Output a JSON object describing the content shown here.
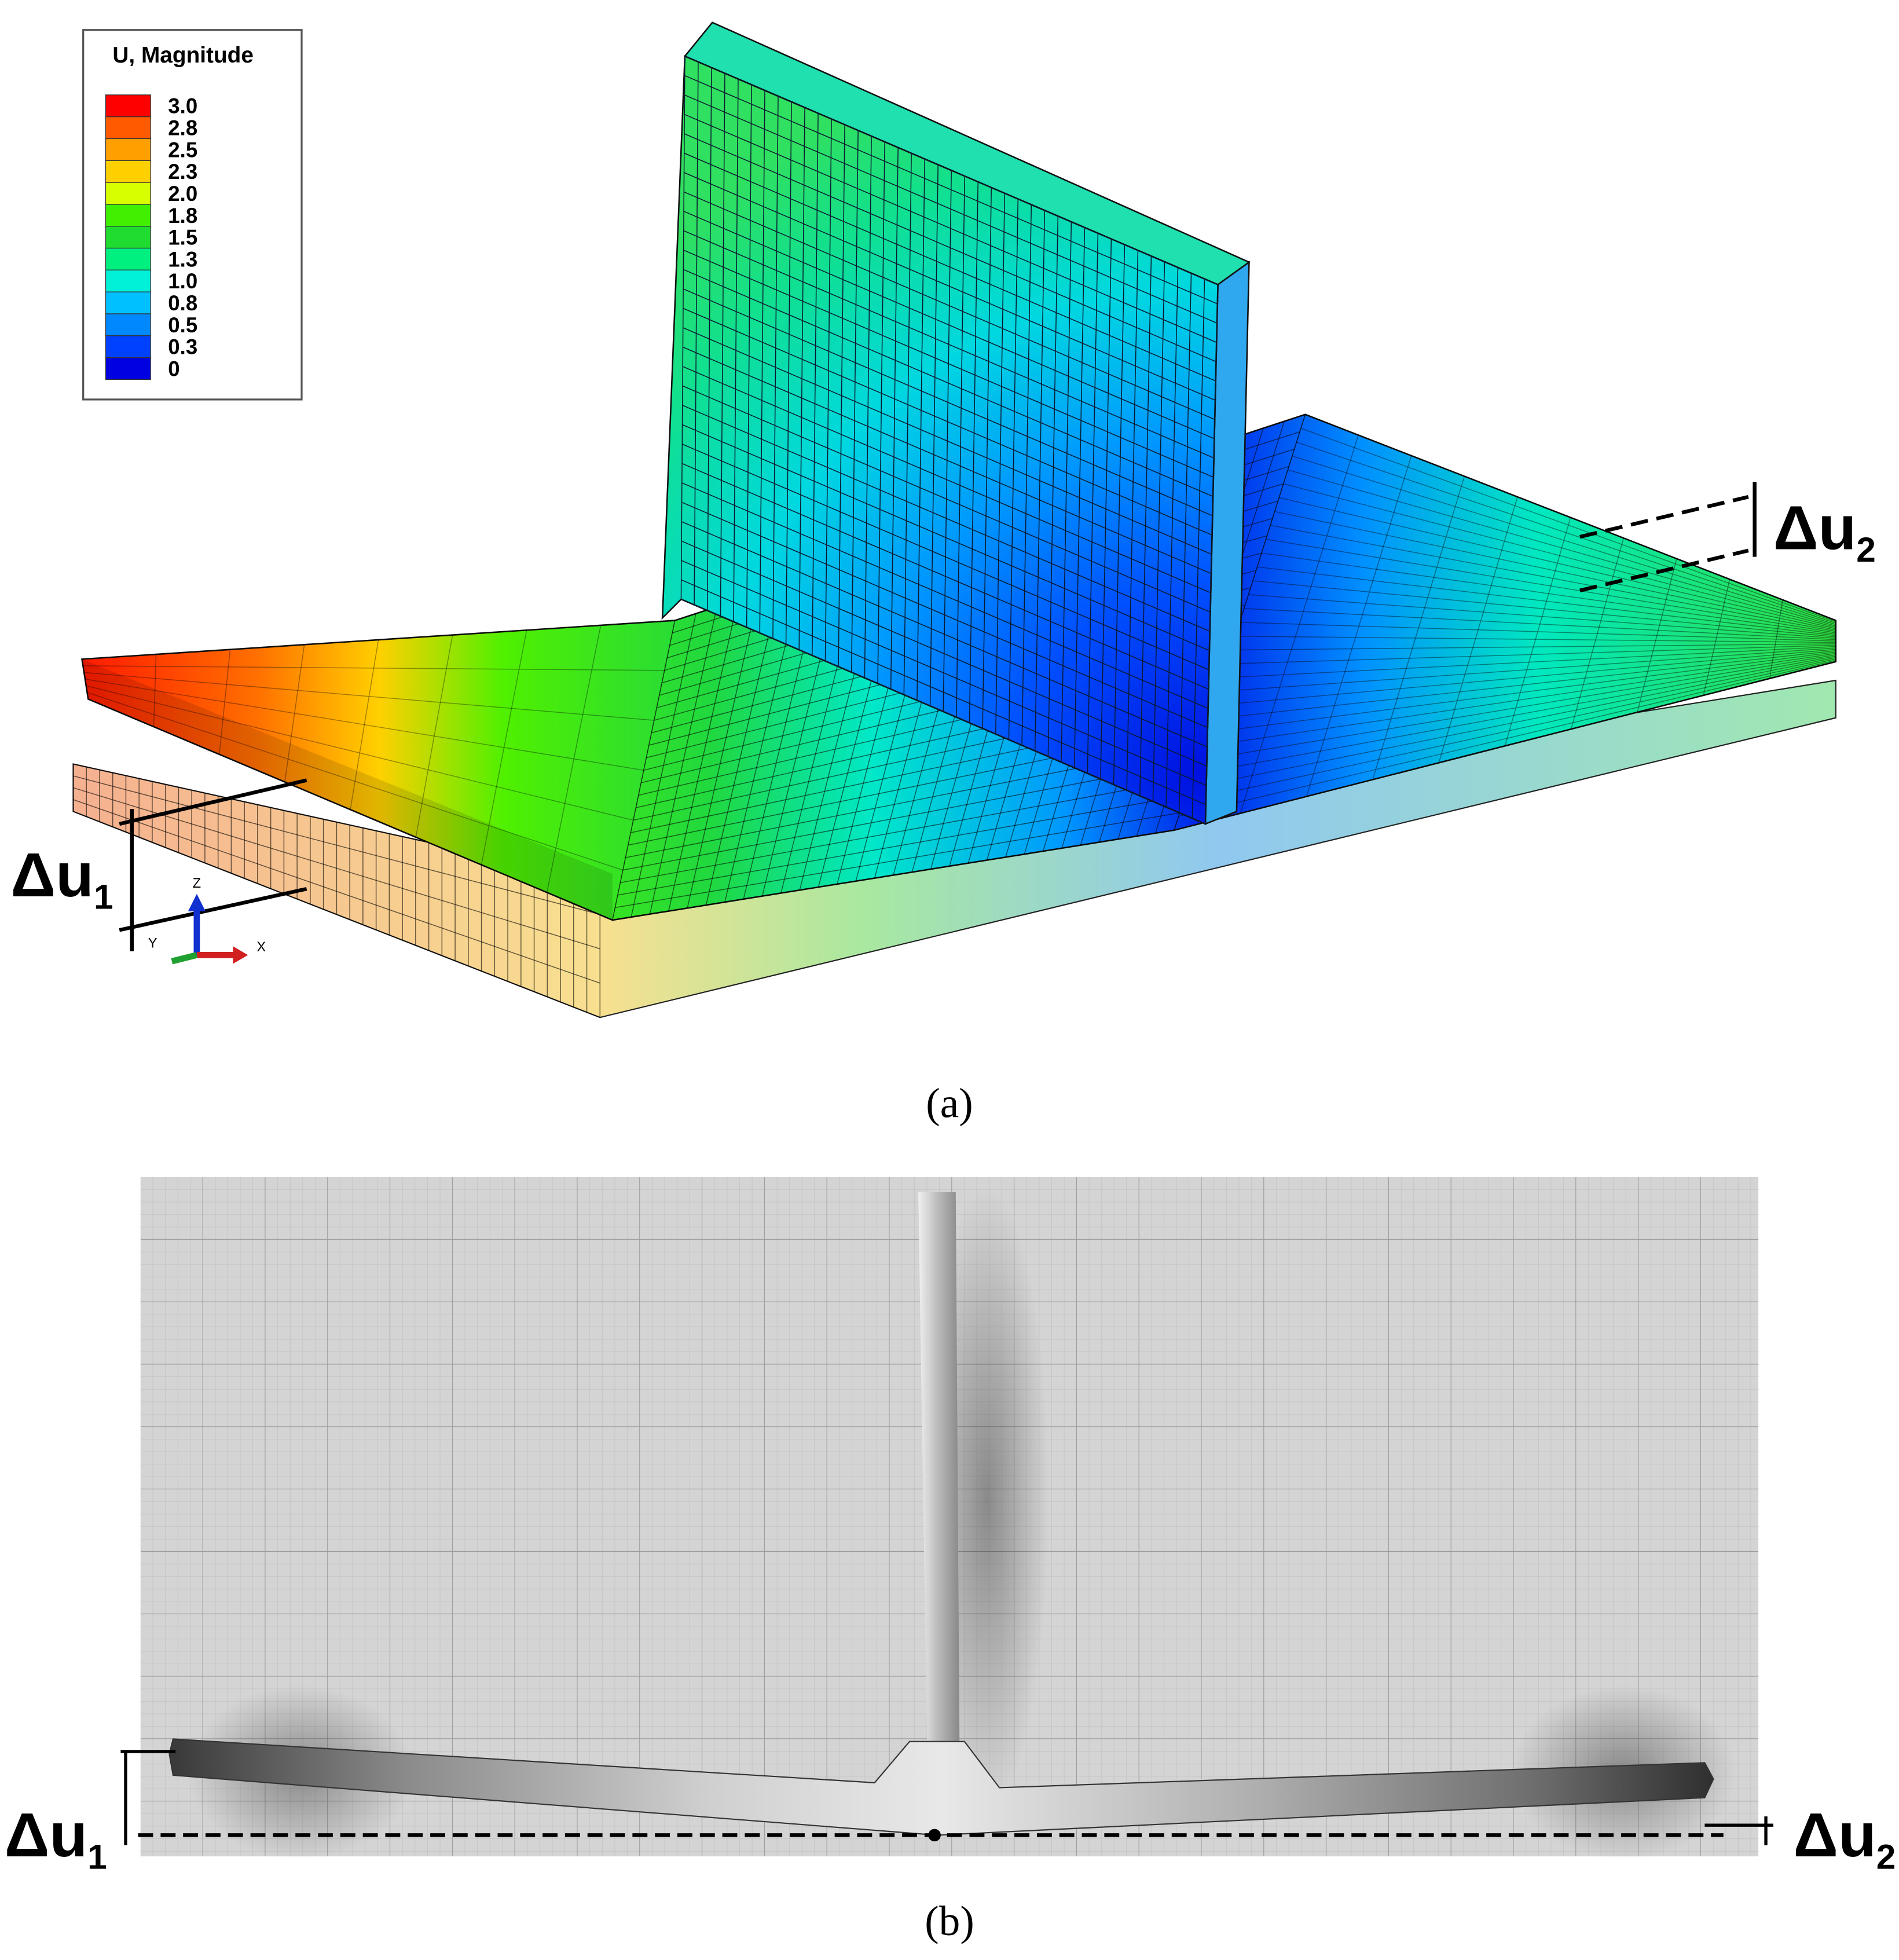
{
  "legend": {
    "title": "U, Magnitude",
    "entries": [
      {
        "label": "3.0",
        "color": "#ff0000"
      },
      {
        "label": "2.8",
        "color": "#ff5a00"
      },
      {
        "label": "2.5",
        "color": "#ffa000"
      },
      {
        "label": "2.3",
        "color": "#ffd000"
      },
      {
        "label": "2.0",
        "color": "#d8ff00"
      },
      {
        "label": "1.8",
        "color": "#40f000"
      },
      {
        "label": "1.5",
        "color": "#20dc30"
      },
      {
        "label": "1.3",
        "color": "#00f080"
      },
      {
        "label": "1.0",
        "color": "#00f0d8"
      },
      {
        "label": "0.8",
        "color": "#00c0ff"
      },
      {
        "label": "0.5",
        "color": "#0088ff"
      },
      {
        "label": "0.3",
        "color": "#0040ff"
      },
      {
        "label": "0",
        "color": "#0000e0"
      }
    ]
  },
  "panel_a": {
    "label": "(a)",
    "axis_labels": [
      "Z",
      "Y",
      "X"
    ],
    "annotations": [
      {
        "symbol": "Δu",
        "subscript": "1"
      },
      {
        "symbol": "Δu",
        "subscript": "2"
      }
    ]
  },
  "panel_b": {
    "label": "(b)",
    "annotations": [
      {
        "symbol": "Δu",
        "subscript": "1"
      },
      {
        "symbol": "Δu",
        "subscript": "2"
      }
    ]
  }
}
